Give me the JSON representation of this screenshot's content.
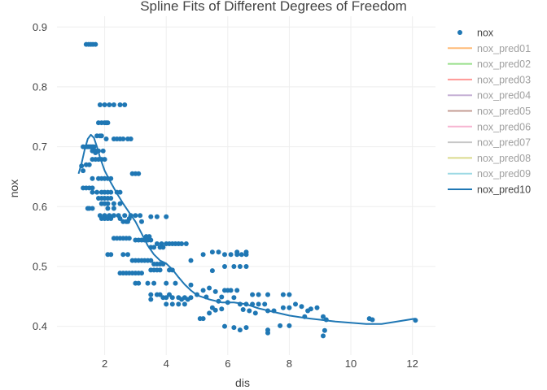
{
  "chart_data": {
    "type": "scatter",
    "title": "Spline Fits of Different Degrees of Freedom",
    "xlabel": "dis",
    "ylabel": "nox",
    "xlim": [
      0.45,
      12.75
    ],
    "ylim": [
      0.352,
      0.918
    ],
    "xticks": [
      2,
      4,
      6,
      8,
      10,
      12
    ],
    "yticks": [
      0.4,
      0.5,
      0.6,
      0.7,
      0.8,
      0.9
    ],
    "xtick_labels": [
      "2",
      "4",
      "6",
      "8",
      "10",
      "12"
    ],
    "ytick_labels": [
      "0.4",
      "0.5",
      "0.6",
      "0.7",
      "0.8",
      "0.9"
    ],
    "grid": true,
    "legend_position": "top-right",
    "scatter_series": {
      "name": "nox",
      "color": "#1f77b4",
      "points": [
        [
          1.4,
          0.871
        ],
        [
          1.48,
          0.871
        ],
        [
          1.55,
          0.871
        ],
        [
          1.62,
          0.871
        ],
        [
          1.7,
          0.871
        ],
        [
          1.85,
          0.77
        ],
        [
          2.0,
          0.77
        ],
        [
          2.15,
          0.77
        ],
        [
          2.3,
          0.77
        ],
        [
          2.5,
          0.77
        ],
        [
          2.65,
          0.77
        ],
        [
          1.8,
          0.74
        ],
        [
          1.9,
          0.74
        ],
        [
          2.0,
          0.74
        ],
        [
          2.05,
          0.74
        ],
        [
          2.1,
          0.74
        ],
        [
          1.3,
          0.7
        ],
        [
          1.4,
          0.7
        ],
        [
          1.45,
          0.7
        ],
        [
          1.5,
          0.7
        ],
        [
          1.55,
          0.7
        ],
        [
          1.6,
          0.7
        ],
        [
          1.65,
          0.7
        ],
        [
          1.7,
          0.69
        ],
        [
          1.25,
          0.668
        ],
        [
          1.3,
          0.66
        ],
        [
          1.4,
          0.67
        ],
        [
          1.5,
          0.67
        ],
        [
          1.75,
          0.718
        ],
        [
          1.85,
          0.718
        ],
        [
          1.9,
          0.718
        ],
        [
          2.05,
          0.713
        ],
        [
          2.3,
          0.713
        ],
        [
          2.4,
          0.713
        ],
        [
          2.5,
          0.713
        ],
        [
          2.6,
          0.713
        ],
        [
          2.75,
          0.713
        ],
        [
          2.85,
          0.713
        ],
        [
          1.6,
          0.693
        ],
        [
          1.7,
          0.693
        ],
        [
          1.8,
          0.693
        ],
        [
          1.95,
          0.693
        ],
        [
          1.6,
          0.679
        ],
        [
          1.7,
          0.679
        ],
        [
          1.8,
          0.679
        ],
        [
          1.9,
          0.679
        ],
        [
          2.0,
          0.679
        ],
        [
          2.9,
          0.655
        ],
        [
          3.0,
          0.655
        ],
        [
          3.1,
          0.655
        ],
        [
          1.6,
          0.647
        ],
        [
          1.8,
          0.647
        ],
        [
          1.9,
          0.647
        ],
        [
          2.0,
          0.647
        ],
        [
          2.1,
          0.647
        ],
        [
          2.2,
          0.647
        ],
        [
          1.3,
          0.631
        ],
        [
          1.4,
          0.631
        ],
        [
          1.5,
          0.631
        ],
        [
          1.6,
          0.631
        ],
        [
          1.6,
          0.624
        ],
        [
          1.75,
          0.624
        ],
        [
          1.9,
          0.624
        ],
        [
          2.0,
          0.624
        ],
        [
          2.1,
          0.624
        ],
        [
          2.2,
          0.624
        ],
        [
          2.4,
          0.624
        ],
        [
          2.5,
          0.624
        ],
        [
          1.8,
          0.614
        ],
        [
          1.9,
          0.614
        ],
        [
          2.0,
          0.614
        ],
        [
          2.1,
          0.614
        ],
        [
          2.2,
          0.614
        ],
        [
          1.9,
          0.605
        ],
        [
          2.0,
          0.605
        ],
        [
          2.1,
          0.605
        ],
        [
          2.3,
          0.605
        ],
        [
          2.5,
          0.605
        ],
        [
          1.45,
          0.597
        ],
        [
          1.5,
          0.597
        ],
        [
          1.6,
          0.597
        ],
        [
          2.1,
          0.597
        ],
        [
          2.3,
          0.597
        ],
        [
          1.85,
          0.585
        ],
        [
          2.0,
          0.585
        ],
        [
          2.15,
          0.585
        ],
        [
          2.3,
          0.585
        ],
        [
          2.45,
          0.585
        ],
        [
          2.65,
          0.585
        ],
        [
          2.85,
          0.585
        ],
        [
          3.0,
          0.585
        ],
        [
          3.15,
          0.585
        ],
        [
          3.5,
          0.583
        ],
        [
          3.7,
          0.583
        ],
        [
          4.0,
          0.583
        ],
        [
          1.9,
          0.58
        ],
        [
          2.0,
          0.58
        ],
        [
          2.1,
          0.58
        ],
        [
          2.2,
          0.58
        ],
        [
          2.5,
          0.58
        ],
        [
          2.8,
          0.58
        ],
        [
          3.2,
          0.575
        ],
        [
          2.6,
          0.575
        ],
        [
          2.7,
          0.575
        ],
        [
          2.75,
          0.575
        ],
        [
          2.1,
          0.52
        ],
        [
          2.2,
          0.52
        ],
        [
          2.6,
          0.52
        ],
        [
          2.75,
          0.52
        ],
        [
          2.3,
          0.547
        ],
        [
          2.4,
          0.547
        ],
        [
          2.5,
          0.547
        ],
        [
          2.6,
          0.547
        ],
        [
          2.7,
          0.547
        ],
        [
          2.8,
          0.547
        ],
        [
          3.0,
          0.544
        ],
        [
          3.1,
          0.544
        ],
        [
          3.2,
          0.544
        ],
        [
          3.3,
          0.544
        ],
        [
          3.4,
          0.544
        ],
        [
          3.5,
          0.544
        ],
        [
          3.35,
          0.55
        ],
        [
          3.45,
          0.55
        ],
        [
          3.7,
          0.538
        ],
        [
          3.85,
          0.538
        ],
        [
          4.0,
          0.538
        ],
        [
          4.1,
          0.538
        ],
        [
          4.2,
          0.538
        ],
        [
          4.3,
          0.538
        ],
        [
          4.4,
          0.538
        ],
        [
          4.5,
          0.538
        ],
        [
          4.65,
          0.538
        ],
        [
          3.5,
          0.532
        ],
        [
          3.6,
          0.532
        ],
        [
          3.8,
          0.532
        ],
        [
          3.9,
          0.532
        ],
        [
          2.9,
          0.51
        ],
        [
          3.0,
          0.51
        ],
        [
          3.1,
          0.51
        ],
        [
          3.2,
          0.51
        ],
        [
          3.3,
          0.51
        ],
        [
          3.4,
          0.51
        ],
        [
          3.5,
          0.51
        ],
        [
          3.6,
          0.504
        ],
        [
          3.7,
          0.504
        ],
        [
          3.8,
          0.504
        ],
        [
          3.9,
          0.504
        ],
        [
          2.5,
          0.489
        ],
        [
          2.6,
          0.489
        ],
        [
          2.7,
          0.489
        ],
        [
          2.8,
          0.489
        ],
        [
          2.9,
          0.489
        ],
        [
          3.0,
          0.489
        ],
        [
          3.1,
          0.489
        ],
        [
          3.2,
          0.489
        ],
        [
          3.5,
          0.494
        ],
        [
          3.6,
          0.494
        ],
        [
          3.7,
          0.494
        ],
        [
          3.8,
          0.494
        ],
        [
          4.1,
          0.494
        ],
        [
          4.2,
          0.494
        ],
        [
          3.0,
          0.472
        ],
        [
          3.1,
          0.472
        ],
        [
          3.4,
          0.472
        ],
        [
          3.6,
          0.472
        ],
        [
          4.0,
          0.472
        ],
        [
          4.3,
          0.472
        ],
        [
          3.5,
          0.453
        ],
        [
          3.7,
          0.453
        ],
        [
          3.8,
          0.453
        ],
        [
          4.1,
          0.453
        ],
        [
          3.9,
          0.448
        ],
        [
          4.0,
          0.448
        ],
        [
          4.2,
          0.448
        ],
        [
          4.4,
          0.448
        ],
        [
          4.6,
          0.448
        ],
        [
          4.8,
          0.448
        ],
        [
          3.5,
          0.445
        ],
        [
          4.5,
          0.445
        ],
        [
          4.7,
          0.445
        ],
        [
          4.0,
          0.437
        ],
        [
          4.2,
          0.437
        ],
        [
          4.4,
          0.437
        ],
        [
          4.6,
          0.437
        ],
        [
          4.8,
          0.469
        ],
        [
          5.2,
          0.46
        ],
        [
          5.4,
          0.464
        ],
        [
          5.6,
          0.458
        ],
        [
          5.9,
          0.46
        ],
        [
          6.1,
          0.46
        ],
        [
          5.0,
          0.453
        ],
        [
          5.3,
          0.449
        ],
        [
          5.8,
          0.449
        ],
        [
          5.1,
          0.413
        ],
        [
          5.2,
          0.413
        ],
        [
          5.4,
          0.422
        ],
        [
          5.5,
          0.431
        ],
        [
          5.6,
          0.427
        ],
        [
          5.7,
          0.442
        ],
        [
          5.8,
          0.429
        ],
        [
          5.5,
          0.493
        ],
        [
          5.9,
          0.5
        ],
        [
          6.2,
          0.5
        ],
        [
          6.4,
          0.5
        ],
        [
          6.6,
          0.5
        ],
        [
          5.7,
          0.524
        ],
        [
          5.9,
          0.52
        ],
        [
          6.1,
          0.52
        ],
        [
          6.3,
          0.52
        ],
        [
          6.45,
          0.52
        ],
        [
          6.6,
          0.52
        ],
        [
          4.8,
          0.51
        ],
        [
          5.2,
          0.52
        ],
        [
          5.5,
          0.524
        ],
        [
          6.3,
          0.524
        ],
        [
          6.6,
          0.524
        ],
        [
          6.0,
          0.44
        ],
        [
          6.2,
          0.448
        ],
        [
          6.4,
          0.437
        ],
        [
          6.6,
          0.437
        ],
        [
          6.8,
          0.437
        ],
        [
          7.0,
          0.437
        ],
        [
          7.2,
          0.437
        ],
        [
          6.0,
          0.46
        ],
        [
          6.3,
          0.46
        ],
        [
          6.8,
          0.453
        ],
        [
          7.0,
          0.453
        ],
        [
          7.3,
          0.453
        ],
        [
          6.5,
          0.428
        ],
        [
          6.7,
          0.426
        ],
        [
          6.9,
          0.422
        ],
        [
          7.3,
          0.426
        ],
        [
          5.9,
          0.4
        ],
        [
          6.2,
          0.398
        ],
        [
          6.4,
          0.394
        ],
        [
          6.6,
          0.398
        ],
        [
          7.3,
          0.389
        ],
        [
          7.3,
          0.394
        ],
        [
          7.5,
          0.426
        ],
        [
          7.8,
          0.431
        ],
        [
          8.0,
          0.431
        ],
        [
          8.2,
          0.437
        ],
        [
          8.4,
          0.433
        ],
        [
          8.6,
          0.426
        ],
        [
          7.8,
          0.453
        ],
        [
          8.0,
          0.453
        ],
        [
          8.7,
          0.429
        ],
        [
          8.9,
          0.431
        ],
        [
          7.7,
          0.401
        ],
        [
          8.0,
          0.401
        ],
        [
          8.5,
          0.416
        ],
        [
          9.1,
          0.416
        ],
        [
          9.2,
          0.411
        ],
        [
          9.1,
          0.384
        ],
        [
          9.15,
          0.393
        ],
        [
          10.6,
          0.413
        ],
        [
          10.7,
          0.411
        ],
        [
          12.1,
          0.41
        ]
      ]
    },
    "legend_entries": [
      {
        "name": "nox",
        "color": "#1f77b4",
        "marker": "circle",
        "visible": true
      },
      {
        "name": "nox_pred01",
        "color": "#ffbb78",
        "marker": "line",
        "visible": false
      },
      {
        "name": "nox_pred02",
        "color": "#98df8a",
        "marker": "line",
        "visible": false
      },
      {
        "name": "nox_pred03",
        "color": "#ff9896",
        "marker": "line",
        "visible": false
      },
      {
        "name": "nox_pred04",
        "color": "#c5b0d5",
        "marker": "line",
        "visible": false
      },
      {
        "name": "nox_pred05",
        "color": "#c49c94",
        "marker": "line",
        "visible": false
      },
      {
        "name": "nox_pred06",
        "color": "#f7b6d2",
        "marker": "line",
        "visible": false
      },
      {
        "name": "nox_pred07",
        "color": "#c7c7c7",
        "marker": "line",
        "visible": false
      },
      {
        "name": "nox_pred08",
        "color": "#dbdb8d",
        "marker": "line",
        "visible": false
      },
      {
        "name": "nox_pred09",
        "color": "#9edae5",
        "marker": "line",
        "visible": false
      },
      {
        "name": "nox_pred10",
        "color": "#1f77b4",
        "marker": "line",
        "visible": true
      }
    ],
    "line_series": {
      "name": "nox_pred10",
      "color": "#1f77b4",
      "points": [
        [
          1.15,
          0.655
        ],
        [
          1.25,
          0.672
        ],
        [
          1.35,
          0.695
        ],
        [
          1.45,
          0.713
        ],
        [
          1.55,
          0.72
        ],
        [
          1.65,
          0.715
        ],
        [
          1.75,
          0.7
        ],
        [
          1.85,
          0.682
        ],
        [
          2.0,
          0.66
        ],
        [
          2.2,
          0.64
        ],
        [
          2.4,
          0.622
        ],
        [
          2.6,
          0.605
        ],
        [
          2.8,
          0.59
        ],
        [
          3.0,
          0.575
        ],
        [
          3.2,
          0.555
        ],
        [
          3.4,
          0.535
        ],
        [
          3.6,
          0.52
        ],
        [
          3.8,
          0.51
        ],
        [
          4.0,
          0.505
        ],
        [
          4.2,
          0.495
        ],
        [
          4.4,
          0.482
        ],
        [
          4.6,
          0.47
        ],
        [
          4.8,
          0.46
        ],
        [
          5.0,
          0.452
        ],
        [
          5.4,
          0.445
        ],
        [
          5.8,
          0.44
        ],
        [
          6.2,
          0.44
        ],
        [
          6.6,
          0.437
        ],
        [
          7.0,
          0.43
        ],
        [
          7.5,
          0.424
        ],
        [
          8.0,
          0.418
        ],
        [
          8.5,
          0.414
        ],
        [
          9.0,
          0.411
        ],
        [
          9.5,
          0.408
        ],
        [
          10.0,
          0.406
        ],
        [
          10.5,
          0.404
        ],
        [
          11.0,
          0.404
        ],
        [
          11.5,
          0.408
        ],
        [
          12.1,
          0.413
        ]
      ]
    }
  }
}
